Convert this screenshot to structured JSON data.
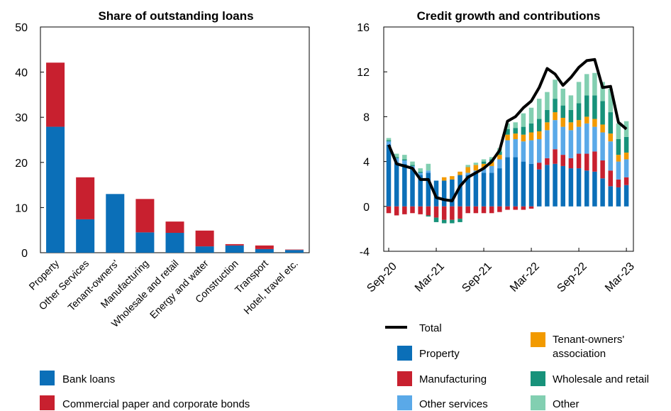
{
  "chart_data": [
    {
      "type": "bar",
      "stacked": true,
      "title": "Share of outstanding loans",
      "categories": [
        "Property",
        "Other Services",
        "Tenant-owners'",
        "Manufacturing",
        "Wholesale and retail",
        "Energy and water",
        "Construction",
        "Transport",
        "Hotel, travel etc."
      ],
      "series": [
        {
          "name": "Bank loans",
          "color": "#0b6fb8",
          "values": [
            27.9,
            7.4,
            13.0,
            4.5,
            4.4,
            1.4,
            1.6,
            0.8,
            0.6
          ]
        },
        {
          "name": "Commercial paper and corporate bonds",
          "color": "#c8202f",
          "values": [
            14.2,
            9.3,
            0.0,
            7.4,
            2.5,
            3.5,
            0.3,
            0.8,
            0.1
          ]
        }
      ],
      "ylim": [
        0,
        50
      ],
      "yticks": [
        0,
        10,
        20,
        30,
        40,
        50
      ],
      "legend": [
        "Bank loans",
        "Commercial paper and corporate bonds"
      ]
    },
    {
      "type": "bar",
      "stacked": true,
      "title": "Credit growth and contributions",
      "x_tick_labels": [
        "Sep-20",
        "Mar-21",
        "Sep-21",
        "Mar-22",
        "Sep-22",
        "Mar-23"
      ],
      "x": [
        "Sep-20",
        "Oct-20",
        "Nov-20",
        "Dec-20",
        "Jan-21",
        "Feb-21",
        "Mar-21",
        "Apr-21",
        "May-21",
        "Jun-21",
        "Jul-21",
        "Aug-21",
        "Sep-21",
        "Oct-21",
        "Nov-21",
        "Dec-21",
        "Jan-22",
        "Feb-22",
        "Mar-22",
        "Apr-22",
        "May-22",
        "Jun-22",
        "Jul-22",
        "Aug-22",
        "Sep-22",
        "Oct-22",
        "Nov-22",
        "Dec-22",
        "Jan-23",
        "Feb-23",
        "Mar-23"
      ],
      "series": [
        {
          "name": "Property",
          "color": "#0b6fb8",
          "values": [
            5.5,
            3.9,
            3.8,
            3.4,
            2.8,
            3.0,
            2.3,
            2.3,
            2.4,
            2.8,
            2.8,
            3.0,
            3.0,
            3.0,
            3.4,
            4.4,
            4.4,
            4.0,
            3.8,
            3.3,
            3.7,
            3.8,
            3.6,
            3.4,
            3.4,
            3.2,
            3.1,
            2.5,
            1.8,
            1.7,
            1.9
          ]
        },
        {
          "name": "Manufacturing",
          "color": "#c8202f",
          "values": [
            -0.6,
            -0.8,
            -0.7,
            -0.6,
            -0.7,
            -0.8,
            -1.0,
            -1.2,
            -1.2,
            -1.1,
            -0.6,
            -0.6,
            -0.6,
            -0.6,
            -0.5,
            -0.3,
            -0.3,
            -0.3,
            -0.2,
            0.6,
            0.6,
            1.3,
            1.0,
            0.9,
            1.3,
            1.5,
            1.8,
            1.6,
            1.4,
            0.7,
            0.7
          ]
        },
        {
          "name": "Other services",
          "color": "#5aa9e8",
          "values": [
            0.3,
            0.4,
            0.3,
            0.2,
            0.2,
            0.2,
            0.0,
            0.0,
            0.0,
            0.0,
            0.2,
            0.2,
            0.4,
            0.6,
            0.8,
            1.5,
            1.6,
            1.8,
            2.1,
            2.1,
            2.5,
            2.6,
            2.5,
            2.5,
            2.4,
            2.7,
            2.2,
            2.5,
            2.6,
            1.6,
            1.6
          ]
        },
        {
          "name": "Tenant-owners' association",
          "color": "#f29a00",
          "values": [
            0.0,
            0.0,
            0.0,
            0.0,
            0.0,
            0.0,
            0.0,
            0.3,
            0.3,
            0.3,
            0.5,
            0.5,
            0.4,
            0.4,
            0.4,
            0.5,
            0.5,
            0.6,
            0.7,
            0.7,
            0.7,
            0.7,
            0.8,
            0.7,
            0.6,
            0.6,
            0.7,
            0.7,
            0.7,
            0.6,
            0.6
          ]
        },
        {
          "name": "Wholesale and retail",
          "color": "#17927a",
          "values": [
            0.1,
            0.1,
            0.1,
            0.1,
            0.1,
            -0.1,
            -0.4,
            -0.3,
            -0.3,
            -0.3,
            0.0,
            0.0,
            0.2,
            0.2,
            0.3,
            0.5,
            0.5,
            0.7,
            0.8,
            1.1,
            1.1,
            1.2,
            1.1,
            1.1,
            1.5,
            1.9,
            2.1,
            2.1,
            1.9,
            1.4,
            1.4
          ]
        },
        {
          "name": "Other",
          "color": "#82cfb1",
          "values": [
            0.2,
            0.3,
            0.4,
            0.3,
            0.3,
            0.6,
            0.0,
            0.0,
            0.0,
            0.0,
            0.2,
            0.2,
            0.2,
            0.2,
            0.3,
            0.5,
            0.5,
            1.2,
            1.4,
            1.8,
            1.6,
            1.7,
            1.5,
            1.3,
            1.9,
            1.9,
            2.0,
            1.7,
            2.1,
            1.4,
            1.4
          ]
        }
      ],
      "total": {
        "name": "Total",
        "color": "#000000",
        "values": [
          5.5,
          3.8,
          3.6,
          3.4,
          2.4,
          2.4,
          0.8,
          0.6,
          0.5,
          1.8,
          2.6,
          3.0,
          3.4,
          4.0,
          5.0,
          7.6,
          8.0,
          8.8,
          9.4,
          10.6,
          12.3,
          11.8,
          10.8,
          11.5,
          12.4,
          13.0,
          13.1,
          10.6,
          10.7,
          7.5,
          6.9
        ]
      },
      "ylim": [
        -4,
        16
      ],
      "yticks": [
        -4,
        0,
        4,
        8,
        12,
        16
      ],
      "legend": [
        "Total",
        "Property",
        "Manufacturing",
        "Other services",
        "Tenant-owners' association",
        "Wholesale and retail",
        "Other"
      ]
    }
  ],
  "legend_left": {
    "item1": "Bank loans",
    "item2": "Commercial paper and corporate bonds"
  },
  "legend_right": {
    "total": "Total",
    "property": "Property",
    "manufacturing": "Manufacturing",
    "other_services": "Other services",
    "tenant_line1": "Tenant-owners'",
    "tenant_line2": "association",
    "wholesale": "Wholesale and retail",
    "other": "Other"
  }
}
